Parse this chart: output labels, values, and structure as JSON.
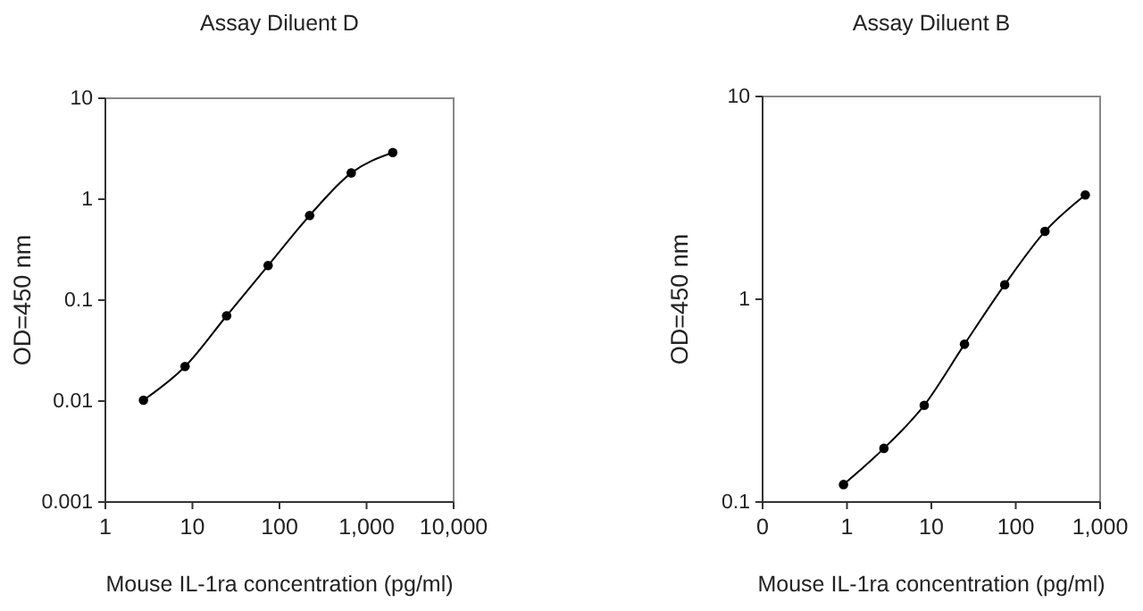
{
  "chart_data": [
    {
      "type": "line",
      "title": "Assay Diluent D",
      "xlabel": "Mouse IL-1ra concentration (pg/ml)",
      "ylabel": "OD=450 nm",
      "log": "xy",
      "marker": "circle",
      "grid": false,
      "xlim": [
        1,
        10000
      ],
      "xticks": [
        1,
        10,
        100,
        {
          "value": 1000,
          "label": "1,000"
        },
        {
          "value": 10000,
          "label": "10,000"
        }
      ],
      "ylim": [
        0.001,
        10
      ],
      "yticks": [
        0.001,
        0.01,
        0.1,
        1,
        10
      ],
      "series": [
        {
          "color": "#000000",
          "x": [
            2.74,
            8.23,
            24.7,
            74,
            222,
            667,
            2000
          ],
          "values": [
            0.0102,
            0.022,
            0.07,
            0.22,
            0.69,
            1.82,
            2.9
          ]
        }
      ]
    },
    {
      "type": "line",
      "title": "Assay Diluent B",
      "xlabel": "Mouse IL-1ra concentration (pg/ml)",
      "ylabel": "OD=450 nm",
      "log": "xy",
      "marker": "circle",
      "grid": false,
      "xlim": [
        0.1,
        1000
      ],
      "xticks": [
        {
          "value": 0.1,
          "label": "0"
        },
        1,
        10,
        100,
        {
          "value": 1000,
          "label": "1,000"
        }
      ],
      "ylim": [
        0.1,
        10
      ],
      "yticks": [
        0.1,
        1,
        10
      ],
      "series": [
        {
          "color": "#000000",
          "x": [
            0.91,
            2.74,
            8.23,
            24.7,
            74,
            222,
            667
          ],
          "values": [
            0.122,
            0.184,
            0.3,
            0.6,
            1.18,
            2.16,
            3.27
          ]
        }
      ]
    }
  ]
}
